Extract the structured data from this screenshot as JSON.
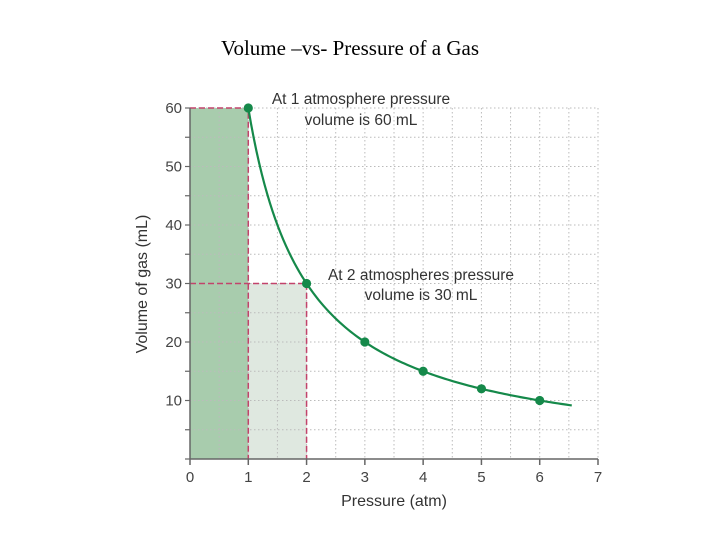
{
  "page": {
    "title": "Volume –vs- Pressure of a Gas"
  },
  "colors": {
    "curve": "#15894a",
    "shade_dark": "#a8ccad",
    "shade_light": "#dfe8e0",
    "dash": "#c2436b",
    "grid": "#bbbbbb",
    "axis": "#666666"
  },
  "chart_data": {
    "type": "line",
    "title": "Volume –vs- Pressure of a Gas",
    "xlabel": "Pressure (atm)",
    "ylabel": "Volume of gas (mL)",
    "xlim": [
      0,
      7
    ],
    "ylim": [
      0,
      60
    ],
    "x_ticks": [
      "0",
      "1",
      "2",
      "3",
      "4",
      "5",
      "6",
      "7"
    ],
    "y_ticks": [
      "10",
      "20",
      "30",
      "40",
      "50",
      "60"
    ],
    "grid": true,
    "curve_range": [
      1,
      6.55
    ],
    "curve_relation": "V = 60 / P",
    "series": [
      {
        "x": [
          1,
          2,
          3,
          4,
          5,
          6
        ],
        "y": [
          60,
          30,
          20,
          15,
          12,
          10
        ]
      }
    ],
    "shaded_regions": [
      {
        "x": [
          0,
          1
        ],
        "y": [
          0,
          60
        ],
        "tone": "dark"
      },
      {
        "x": [
          1,
          2
        ],
        "y": [
          0,
          30
        ],
        "tone": "light"
      }
    ],
    "annotations": [
      {
        "lines": [
          "At 1 atmosphere pressure",
          "volume is 60 mL"
        ],
        "point": [
          1,
          60
        ]
      },
      {
        "lines": [
          "At 2 atmospheres pressure",
          "volume is 30 mL"
        ],
        "point": [
          2,
          30
        ]
      }
    ]
  }
}
